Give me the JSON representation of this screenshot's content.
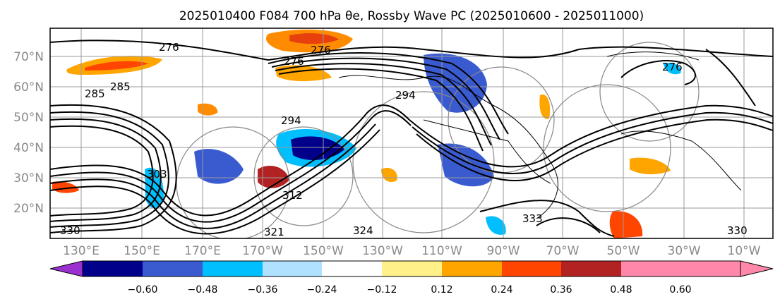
{
  "title": "2025010400 F084 700 hPa θe, Rossby Wave PC (2025010600 - 2025011000)",
  "map": {
    "lat_labels": [
      "70°N",
      "60°N",
      "50°N",
      "40°N",
      "30°N",
      "20°N"
    ],
    "lon_labels": [
      "130°E",
      "150°E",
      "170°E",
      "170°W",
      "150°W",
      "130°W",
      "110°W",
      "90°W",
      "70°W",
      "50°W",
      "30°W",
      "10°W"
    ],
    "contour_labels": [
      "276",
      "276",
      "285",
      "285",
      "294",
      "294",
      "303",
      "312",
      "321",
      "324",
      "330",
      "330",
      "333",
      "276",
      "276"
    ]
  },
  "colorbar": {
    "colors": [
      "#9b30d0",
      "#00008b",
      "#3a5bd0",
      "#00bfff",
      "#b0e2ff",
      "#ffffff",
      "#fff08a",
      "#ffa500",
      "#ff4500",
      "#b22222",
      "#ff88aa"
    ],
    "tick_labels": [
      "−0.60",
      "−0.48",
      "−0.36",
      "−0.24",
      "−0.12",
      "0.12",
      "0.24",
      "0.36",
      "0.48",
      "0.60"
    ]
  }
}
